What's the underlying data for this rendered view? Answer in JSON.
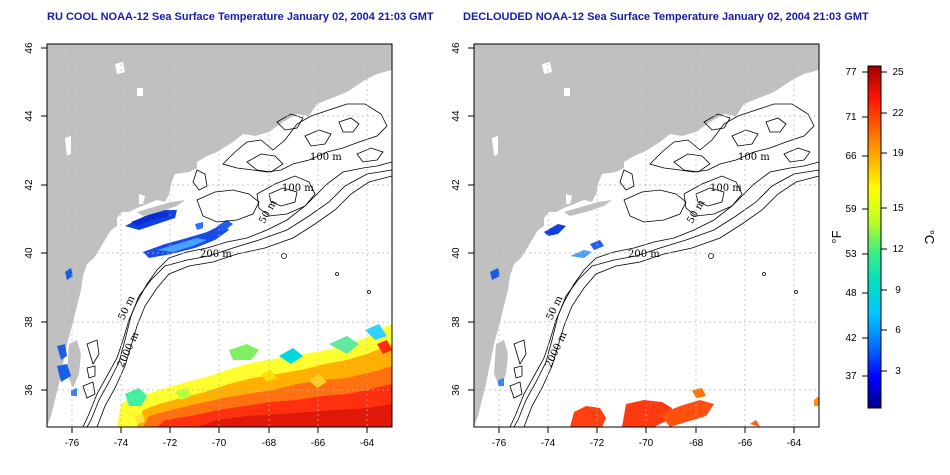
{
  "titles": {
    "left": "RU COOL NOAA-12 Sea Surface Temperature January 02, 2004 21:03 GMT",
    "right": "DECLOUDED NOAA-12 Sea Surface Temperature January 02, 2004 21:03 GMT"
  },
  "map": {
    "lon_ticks": [
      "-76",
      "-74",
      "-72",
      "-70",
      "-68",
      "-66",
      "-64"
    ],
    "lat_ticks": [
      "36",
      "38",
      "40",
      "42",
      "44",
      "46"
    ],
    "lon_range": [
      -77.2,
      -63.2
    ],
    "lat_range": [
      35,
      46.2
    ],
    "contour_labels": [
      "100 m",
      "100 m",
      "50 m",
      "200 m",
      "50 m",
      "2000 m"
    ],
    "colors": {
      "land": "#c0c0c0",
      "ocean": "#ffffff",
      "grid": "#b5b5b5",
      "contour": "#000000"
    }
  },
  "colorbar": {
    "fahrenheit_ticks": [
      "77",
      "71",
      "66",
      "59",
      "53",
      "48",
      "42",
      "37"
    ],
    "celsius_ticks": [
      "25",
      "22",
      "19",
      "15",
      "12",
      "9",
      "6",
      "3"
    ],
    "fahrenheit_unit": "°F",
    "celsius_unit": "°C",
    "range_celsius": [
      0,
      25.5
    ],
    "gradient": [
      "#00008b",
      "#0000ff",
      "#0070ff",
      "#00c8ff",
      "#00e0c0",
      "#40f080",
      "#c0ff20",
      "#ffff00",
      "#ffb000",
      "#ff6000",
      "#ff1000",
      "#a00000"
    ]
  }
}
